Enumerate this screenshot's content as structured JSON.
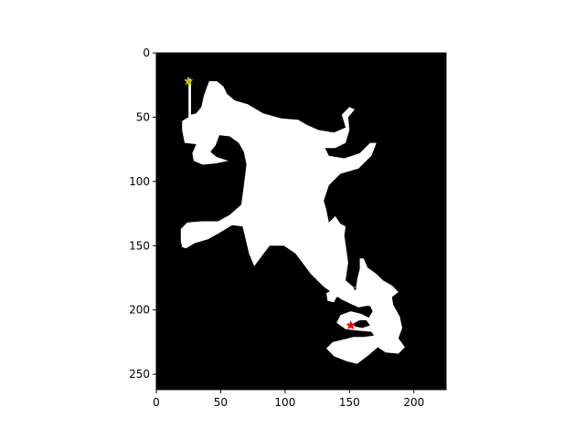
{
  "chart_data": {
    "type": "heatmap",
    "title": "",
    "xlabel": "",
    "ylabel": "",
    "xlim": [
      0,
      225
    ],
    "ylim": [
      262,
      0
    ],
    "x_ticks": [
      0,
      50,
      100,
      150,
      200
    ],
    "y_ticks": [
      0,
      50,
      100,
      150,
      200,
      250
    ],
    "x_tick_labels": [
      "0",
      "50",
      "100",
      "150",
      "200"
    ],
    "y_tick_labels": [
      "0",
      "50",
      "100",
      "150",
      "200",
      "250"
    ],
    "grid": false,
    "colormap": {
      "background": "#000000",
      "region": "#ffffff"
    },
    "region_outlines": [
      {
        "name": "main-free-region",
        "points": [
          [
            25,
            20
          ],
          [
            27,
            20
          ],
          [
            27,
            48
          ],
          [
            31,
            47
          ],
          [
            35,
            42
          ],
          [
            37,
            33
          ],
          [
            41,
            22
          ],
          [
            47,
            22
          ],
          [
            52,
            26
          ],
          [
            55,
            32
          ],
          [
            61,
            37
          ],
          [
            71,
            40
          ],
          [
            83,
            47
          ],
          [
            97,
            51
          ],
          [
            110,
            52
          ],
          [
            117,
            56
          ],
          [
            126,
            60
          ],
          [
            138,
            62
          ],
          [
            147,
            58
          ],
          [
            144,
            48
          ],
          [
            150,
            42
          ],
          [
            154,
            44
          ],
          [
            149,
            50
          ],
          [
            150,
            60
          ],
          [
            147,
            70
          ],
          [
            139,
            74
          ],
          [
            131,
            74
          ],
          [
            134,
            80
          ],
          [
            146,
            82
          ],
          [
            158,
            78
          ],
          [
            166,
            70
          ],
          [
            171,
            70
          ],
          [
            167,
            80
          ],
          [
            157,
            90
          ],
          [
            143,
            94
          ],
          [
            134,
            103
          ],
          [
            130,
            115
          ],
          [
            132,
            122
          ],
          [
            134,
            132
          ],
          [
            139,
            127
          ],
          [
            143,
            133
          ],
          [
            147,
            135
          ],
          [
            146,
            142
          ],
          [
            149,
            163
          ],
          [
            147,
            177
          ],
          [
            154,
            183
          ],
          [
            156,
            181
          ],
          [
            153,
            183
          ],
          [
            160,
            192
          ],
          [
            168,
            196
          ],
          [
            157,
            198
          ],
          [
            144,
            192
          ],
          [
            130,
            182
          ],
          [
            120,
            172
          ],
          [
            108,
            156
          ],
          [
            99,
            150
          ],
          [
            88,
            150
          ],
          [
            82,
            158
          ],
          [
            76,
            166
          ],
          [
            72,
            156
          ],
          [
            67,
            135
          ],
          [
            59,
            134
          ],
          [
            49,
            140
          ],
          [
            40,
            145
          ],
          [
            30,
            148
          ],
          [
            23,
            152
          ],
          [
            20,
            151
          ],
          [
            19,
            146
          ],
          [
            19,
            137
          ],
          [
            24,
            132
          ],
          [
            35,
            131
          ],
          [
            48,
            131
          ],
          [
            57,
            126
          ],
          [
            66,
            118
          ],
          [
            68,
            103
          ],
          [
            70,
            87
          ],
          [
            68,
            77
          ],
          [
            64,
            70
          ],
          [
            57,
            65
          ],
          [
            49,
            64
          ],
          [
            46,
            72
          ],
          [
            42,
            77
          ],
          [
            47,
            81
          ],
          [
            56,
            84
          ],
          [
            46,
            86
          ],
          [
            36,
            87
          ],
          [
            29,
            84
          ],
          [
            28,
            78
          ],
          [
            31,
            71
          ],
          [
            22,
            70
          ],
          [
            20,
            60
          ],
          [
            20,
            53
          ],
          [
            25,
            50
          ]
        ]
      },
      {
        "name": "lower-right-free-region",
        "points": [
          [
            158,
            160
          ],
          [
            161,
            160
          ],
          [
            164,
            167
          ],
          [
            171,
            172
          ],
          [
            176,
            177
          ],
          [
            183,
            181
          ],
          [
            188,
            186
          ],
          [
            183,
            190
          ],
          [
            184,
            196
          ],
          [
            189,
            205
          ],
          [
            191,
            214
          ],
          [
            188,
            222
          ],
          [
            193,
            229
          ],
          [
            188,
            234
          ],
          [
            178,
            233
          ],
          [
            172,
            229
          ],
          [
            165,
            235
          ],
          [
            156,
            242
          ],
          [
            148,
            240
          ],
          [
            138,
            236
          ],
          [
            132,
            230
          ],
          [
            137,
            225
          ],
          [
            145,
            223
          ],
          [
            153,
            221
          ],
          [
            161,
            221
          ],
          [
            169,
            220
          ],
          [
            167,
            217
          ],
          [
            156,
            216
          ],
          [
            147,
            215
          ],
          [
            140,
            210
          ],
          [
            143,
            204
          ],
          [
            151,
            201
          ],
          [
            159,
            203
          ],
          [
            165,
            206
          ],
          [
            168,
            201
          ],
          [
            166,
            197
          ],
          [
            158,
            196
          ],
          [
            153,
            192
          ],
          [
            146,
            190
          ],
          [
            140,
            190
          ],
          [
            138,
            194
          ],
          [
            133,
            193
          ],
          [
            132,
            187
          ],
          [
            139,
            183
          ],
          [
            146,
            184
          ],
          [
            152,
            188
          ],
          [
            155,
            184
          ],
          [
            156,
            176
          ],
          [
            158,
            168
          ]
        ]
      }
    ],
    "hole_outlines": [
      {
        "name": "hole-1",
        "points": [
          [
            158,
            208
          ],
          [
            163,
            208
          ],
          [
            166,
            212
          ],
          [
            160,
            214
          ],
          [
            155,
            213
          ],
          [
            152,
            211
          ]
        ]
      }
    ],
    "markers": [
      {
        "name": "start-marker",
        "shape": "star",
        "x": 25,
        "y": 22,
        "color": "#bfbf00"
      },
      {
        "name": "goal-marker",
        "shape": "star",
        "x": 151,
        "y": 212,
        "color": "#ff0000"
      }
    ]
  }
}
